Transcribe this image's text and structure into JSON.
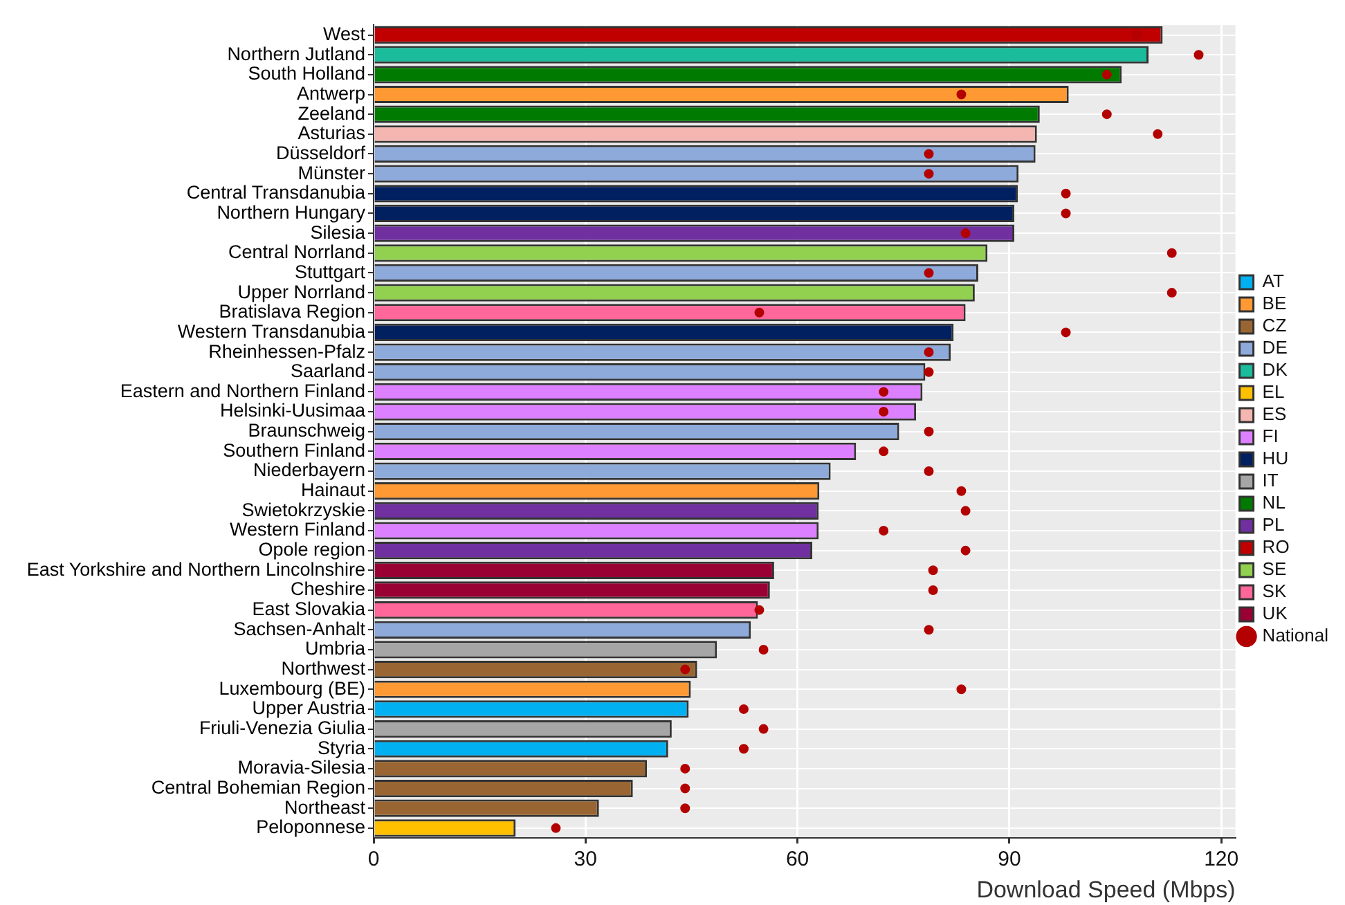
{
  "chart_data": {
    "type": "bar",
    "orientation": "horizontal",
    "xlabel": "Download Speed (Mbps)",
    "xlim": [
      0,
      122
    ],
    "xticks": [
      0,
      30,
      60,
      90,
      120
    ],
    "grid": true,
    "legend": "right",
    "marker": "circle",
    "categories": [
      "West",
      "Northern Jutland",
      "South Holland",
      "Antwerp",
      "Zeeland",
      "Asturias",
      "Düsseldorf",
      "Münster",
      "Central Transdanubia",
      "Northern Hungary",
      "Silesia",
      "Central Norrland",
      "Stuttgart",
      "Upper Norrland",
      "Bratislava Region",
      "Western Transdanubia",
      "Rheinhessen-Pfalz",
      "Saarland",
      "Eastern and Northern Finland",
      "Helsinki-Uusimaa",
      "Braunschweig",
      "Southern Finland",
      "Niederbayern",
      "Hainaut",
      "Swietokrzyskie",
      "Western Finland",
      "Opole region",
      "East Yorkshire and Northern Lincolnshire",
      "Cheshire",
      "East Slovakia",
      "Sachsen-Anhalt",
      "Umbria",
      "Northwest",
      "Luxembourg (BE)",
      "Upper Austria",
      "Friuli-Venezia Giulia",
      "Styria",
      "Moravia-Silesia",
      "Central Bohemian Region",
      "Northeast",
      "Peloponnese"
    ],
    "series": [
      {
        "name": "AT",
        "color": "#00b0f0",
        "values": [
          null,
          null,
          null,
          null,
          null,
          null,
          null,
          null,
          null,
          null,
          null,
          null,
          null,
          null,
          null,
          null,
          null,
          null,
          null,
          null,
          null,
          null,
          null,
          null,
          null,
          null,
          null,
          null,
          null,
          null,
          null,
          null,
          null,
          null,
          44.6,
          null,
          41.7,
          null,
          null,
          null,
          null
        ]
      },
      {
        "name": "BE",
        "color": "#ff9933",
        "values": [
          null,
          null,
          null,
          98.4,
          null,
          null,
          null,
          null,
          null,
          null,
          null,
          null,
          null,
          null,
          null,
          null,
          null,
          null,
          null,
          null,
          null,
          null,
          null,
          63.1,
          null,
          null,
          null,
          null,
          null,
          null,
          null,
          null,
          null,
          44.9,
          null,
          null,
          null,
          null,
          null,
          null,
          null
        ]
      },
      {
        "name": "CZ",
        "color": "#996633",
        "values": [
          null,
          null,
          null,
          null,
          null,
          null,
          null,
          null,
          null,
          null,
          null,
          null,
          null,
          null,
          null,
          null,
          null,
          null,
          null,
          null,
          null,
          null,
          null,
          null,
          null,
          null,
          null,
          null,
          null,
          null,
          null,
          null,
          45.8,
          null,
          null,
          null,
          null,
          38.7,
          36.7,
          31.9,
          null
        ]
      },
      {
        "name": "DE",
        "color": "#8eaadb",
        "values": [
          null,
          null,
          null,
          null,
          null,
          null,
          93.7,
          91.3,
          null,
          null,
          null,
          null,
          85.6,
          null,
          null,
          null,
          81.7,
          78.1,
          null,
          null,
          74.4,
          null,
          64.7,
          null,
          null,
          null,
          null,
          null,
          null,
          null,
          53.4,
          null,
          null,
          null,
          null,
          null,
          null,
          null,
          null,
          null,
          null
        ]
      },
      {
        "name": "DK",
        "color": "#1abc9c",
        "values": [
          null,
          109.7,
          null,
          null,
          null,
          null,
          null,
          null,
          null,
          null,
          null,
          null,
          null,
          null,
          null,
          null,
          null,
          null,
          null,
          null,
          null,
          null,
          null,
          null,
          null,
          null,
          null,
          null,
          null,
          null,
          null,
          null,
          null,
          null,
          null,
          null,
          null,
          null,
          null,
          null,
          null
        ]
      },
      {
        "name": "EL",
        "color": "#ffc000",
        "values": [
          null,
          null,
          null,
          null,
          null,
          null,
          null,
          null,
          null,
          null,
          null,
          null,
          null,
          null,
          null,
          null,
          null,
          null,
          null,
          null,
          null,
          null,
          null,
          null,
          null,
          null,
          null,
          null,
          null,
          null,
          null,
          null,
          null,
          null,
          null,
          null,
          null,
          null,
          null,
          null,
          20.1
        ]
      },
      {
        "name": "ES",
        "color": "#f4b6b0",
        "values": [
          null,
          null,
          null,
          null,
          null,
          93.9,
          null,
          null,
          null,
          null,
          null,
          null,
          null,
          null,
          null,
          null,
          null,
          null,
          null,
          null,
          null,
          null,
          null,
          null,
          null,
          null,
          null,
          null,
          null,
          null,
          null,
          null,
          null,
          null,
          null,
          null,
          null,
          null,
          null,
          null,
          null
        ]
      },
      {
        "name": "FI",
        "color": "#dd80ff",
        "values": [
          null,
          null,
          null,
          null,
          null,
          null,
          null,
          null,
          null,
          null,
          null,
          null,
          null,
          null,
          null,
          null,
          null,
          null,
          77.7,
          76.8,
          null,
          68.3,
          null,
          null,
          null,
          63.0,
          null,
          null,
          null,
          null,
          null,
          null,
          null,
          null,
          null,
          null,
          null,
          null,
          null,
          null,
          null
        ]
      },
      {
        "name": "HU",
        "color": "#002060",
        "values": [
          null,
          null,
          null,
          null,
          null,
          null,
          null,
          null,
          91.2,
          90.7,
          null,
          null,
          null,
          null,
          null,
          82.1,
          null,
          null,
          null,
          null,
          null,
          null,
          null,
          null,
          null,
          null,
          null,
          null,
          null,
          null,
          null,
          null,
          null,
          null,
          null,
          null,
          null,
          null,
          null,
          null,
          null
        ]
      },
      {
        "name": "IT",
        "color": "#a6a6a6",
        "values": [
          null,
          null,
          null,
          null,
          null,
          null,
          null,
          null,
          null,
          null,
          null,
          null,
          null,
          null,
          null,
          null,
          null,
          null,
          null,
          null,
          null,
          null,
          null,
          null,
          null,
          null,
          null,
          null,
          null,
          null,
          null,
          48.6,
          null,
          null,
          null,
          42.2,
          null,
          null,
          null,
          null,
          null
        ]
      },
      {
        "name": "NL",
        "color": "#007a00",
        "values": [
          null,
          null,
          105.9,
          null,
          94.3,
          null,
          null,
          null,
          null,
          null,
          null,
          null,
          null,
          null,
          null,
          null,
          null,
          null,
          null,
          null,
          null,
          null,
          null,
          null,
          null,
          null,
          null,
          null,
          null,
          null,
          null,
          null,
          null,
          null,
          null,
          null,
          null,
          null,
          null,
          null,
          null
        ]
      },
      {
        "name": "PL",
        "color": "#7030a0",
        "values": [
          null,
          null,
          null,
          null,
          null,
          null,
          null,
          null,
          null,
          null,
          90.7,
          null,
          null,
          null,
          null,
          null,
          null,
          null,
          null,
          null,
          null,
          null,
          null,
          null,
          63.0,
          null,
          62.1,
          null,
          null,
          null,
          null,
          null,
          null,
          null,
          null,
          null,
          null,
          null,
          null,
          null,
          null
        ]
      },
      {
        "name": "RO",
        "color": "#c00000",
        "values": [
          111.7,
          null,
          null,
          null,
          null,
          null,
          null,
          null,
          null,
          null,
          null,
          null,
          null,
          null,
          null,
          null,
          null,
          null,
          null,
          null,
          null,
          null,
          null,
          null,
          null,
          null,
          null,
          null,
          null,
          null,
          null,
          null,
          null,
          null,
          null,
          null,
          null,
          null,
          null,
          null,
          null
        ]
      },
      {
        "name": "SE",
        "color": "#92d050",
        "values": [
          null,
          null,
          null,
          null,
          null,
          null,
          null,
          null,
          null,
          null,
          null,
          86.9,
          null,
          85.1,
          null,
          null,
          null,
          null,
          null,
          null,
          null,
          null,
          null,
          null,
          null,
          null,
          null,
          null,
          null,
          null,
          null,
          null,
          null,
          null,
          null,
          null,
          null,
          null,
          null,
          null,
          null
        ]
      },
      {
        "name": "SK",
        "color": "#ff6699",
        "values": [
          null,
          null,
          null,
          null,
          null,
          null,
          null,
          null,
          null,
          null,
          null,
          null,
          null,
          null,
          83.8,
          null,
          null,
          null,
          null,
          null,
          null,
          null,
          null,
          null,
          null,
          null,
          null,
          null,
          null,
          54.4,
          null,
          null,
          null,
          null,
          null,
          null,
          null,
          null,
          null,
          null,
          null
        ]
      },
      {
        "name": "UK",
        "color": "#990033",
        "values": [
          null,
          null,
          null,
          null,
          null,
          null,
          null,
          null,
          null,
          null,
          null,
          null,
          null,
          null,
          null,
          null,
          null,
          null,
          null,
          null,
          null,
          null,
          null,
          null,
          null,
          null,
          null,
          56.7,
          56.1,
          null,
          null,
          null,
          null,
          null,
          null,
          null,
          null,
          null,
          null,
          null,
          null
        ]
      },
      {
        "name": "National",
        "type": "scatter",
        "color": "#b30000",
        "values": [
          108.0,
          116.8,
          103.8,
          83.2,
          103.8,
          111.0,
          78.6,
          78.6,
          98.0,
          98.0,
          83.8,
          113.0,
          78.6,
          113.0,
          54.6,
          98.0,
          78.6,
          78.6,
          72.2,
          72.2,
          78.6,
          72.2,
          78.6,
          83.2,
          83.8,
          72.2,
          83.8,
          79.2,
          79.2,
          54.6,
          78.6,
          55.2,
          44.1,
          83.2,
          52.4,
          55.2,
          52.4,
          44.1,
          44.1,
          44.1,
          25.8
        ]
      }
    ]
  }
}
